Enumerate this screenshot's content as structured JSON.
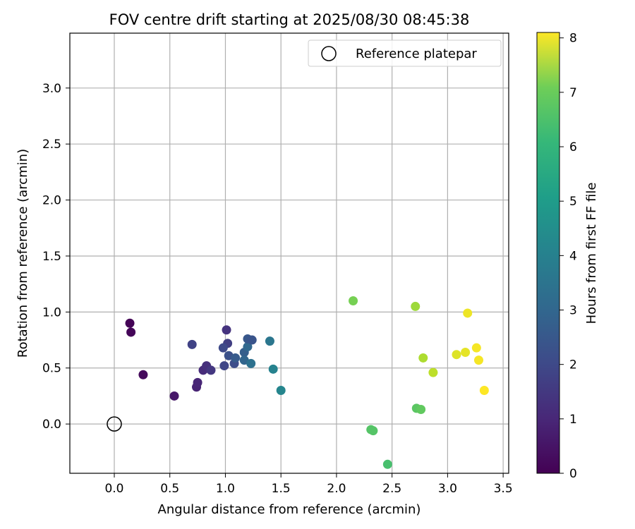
{
  "chart_data": {
    "type": "scatter",
    "title": "FOV centre drift starting at 2025/08/30 08:45:38",
    "xlabel": "Angular distance from reference (arcmin)",
    "ylabel": "Rotation from reference (arcmin)",
    "xlim": [
      -0.4,
      3.55
    ],
    "ylim": [
      -0.44,
      3.49
    ],
    "xticks": [
      0.0,
      0.5,
      1.0,
      1.5,
      2.0,
      2.5,
      3.0,
      3.5
    ],
    "yticks": [
      0.0,
      0.5,
      1.0,
      1.5,
      2.0,
      2.5,
      3.0
    ],
    "grid": true,
    "legend_position": "top-right",
    "colorbar": {
      "label": "Hours from first FF file",
      "range": [
        0,
        8.1
      ],
      "ticks": [
        0,
        1,
        2,
        3,
        4,
        5,
        6,
        7,
        8
      ],
      "colormap": "viridis"
    },
    "reference": {
      "name": "Reference platepar",
      "x": 0.0,
      "y": 0.0
    },
    "points": [
      {
        "x": 0.14,
        "y": 0.9,
        "c": 0.05
      },
      {
        "x": 0.15,
        "y": 0.82,
        "c": 0.1
      },
      {
        "x": 0.26,
        "y": 0.44,
        "c": 0.2
      },
      {
        "x": 0.54,
        "y": 0.25,
        "c": 0.5
      },
      {
        "x": 0.74,
        "y": 0.33,
        "c": 0.8
      },
      {
        "x": 0.75,
        "y": 0.37,
        "c": 0.85
      },
      {
        "x": 0.8,
        "y": 0.48,
        "c": 1.0
      },
      {
        "x": 0.83,
        "y": 0.52,
        "c": 1.1
      },
      {
        "x": 0.87,
        "y": 0.48,
        "c": 1.3
      },
      {
        "x": 0.7,
        "y": 0.71,
        "c": 1.6
      },
      {
        "x": 1.01,
        "y": 0.84,
        "c": 1.2
      },
      {
        "x": 1.02,
        "y": 0.72,
        "c": 1.5
      },
      {
        "x": 0.98,
        "y": 0.68,
        "c": 1.8
      },
      {
        "x": 0.99,
        "y": 0.52,
        "c": 1.7
      },
      {
        "x": 1.03,
        "y": 0.61,
        "c": 2.0
      },
      {
        "x": 1.08,
        "y": 0.54,
        "c": 1.9
      },
      {
        "x": 1.09,
        "y": 0.59,
        "c": 2.3
      },
      {
        "x": 1.17,
        "y": 0.64,
        "c": 2.4
      },
      {
        "x": 1.17,
        "y": 0.57,
        "c": 2.6
      },
      {
        "x": 1.2,
        "y": 0.69,
        "c": 2.7
      },
      {
        "x": 1.2,
        "y": 0.76,
        "c": 2.2
      },
      {
        "x": 1.24,
        "y": 0.75,
        "c": 2.1
      },
      {
        "x": 1.23,
        "y": 0.54,
        "c": 3.0
      },
      {
        "x": 1.4,
        "y": 0.74,
        "c": 3.2
      },
      {
        "x": 1.43,
        "y": 0.49,
        "c": 3.6
      },
      {
        "x": 1.5,
        "y": 0.3,
        "c": 3.7
      },
      {
        "x": 2.15,
        "y": 1.1,
        "c": 6.4
      },
      {
        "x": 2.31,
        "y": -0.05,
        "c": 5.9
      },
      {
        "x": 2.33,
        "y": -0.06,
        "c": 5.9
      },
      {
        "x": 2.46,
        "y": -0.36,
        "c": 5.7
      },
      {
        "x": 2.72,
        "y": 0.14,
        "c": 6.0
      },
      {
        "x": 2.76,
        "y": 0.13,
        "c": 6.1
      },
      {
        "x": 2.71,
        "y": 1.05,
        "c": 6.9
      },
      {
        "x": 2.78,
        "y": 0.59,
        "c": 7.1
      },
      {
        "x": 2.87,
        "y": 0.46,
        "c": 7.3
      },
      {
        "x": 3.08,
        "y": 0.62,
        "c": 7.7
      },
      {
        "x": 3.16,
        "y": 0.64,
        "c": 7.8
      },
      {
        "x": 3.18,
        "y": 0.99,
        "c": 7.9
      },
      {
        "x": 3.26,
        "y": 0.68,
        "c": 8.0
      },
      {
        "x": 3.28,
        "y": 0.57,
        "c": 8.0
      },
      {
        "x": 3.33,
        "y": 0.3,
        "c": 8.1
      }
    ]
  }
}
